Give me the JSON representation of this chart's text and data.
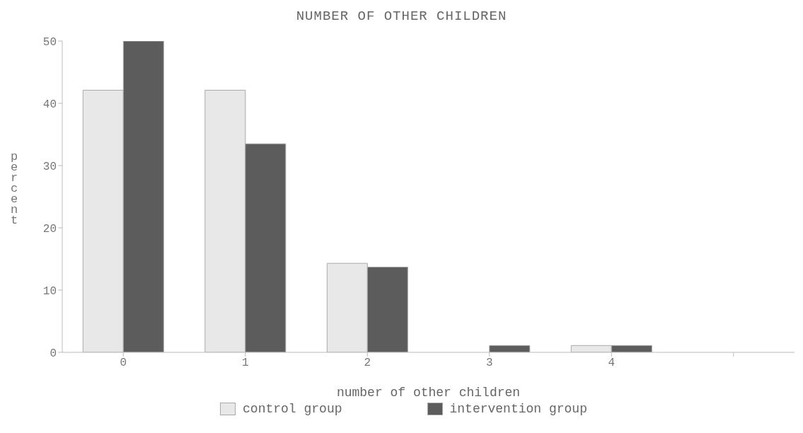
{
  "chart_data": {
    "type": "bar",
    "title": "NUMBER OF OTHER CHILDREN",
    "xlabel": "number of other children",
    "ylabel": "percent",
    "categories": [
      "0",
      "1",
      "2",
      "3",
      "4",
      null
    ],
    "series": [
      {
        "name": "control group",
        "color": "#e8e8e8",
        "values": [
          42.1,
          42.1,
          14.3,
          0,
          1.1,
          null
        ]
      },
      {
        "name": "intervention group",
        "color": "#5c5c5c",
        "values": [
          50,
          33.5,
          13.7,
          1.1,
          1.1,
          null
        ]
      }
    ],
    "ylim": [
      0,
      50
    ],
    "yticks": [
      0,
      10,
      20,
      30,
      40,
      50
    ],
    "legend": "bottom"
  }
}
